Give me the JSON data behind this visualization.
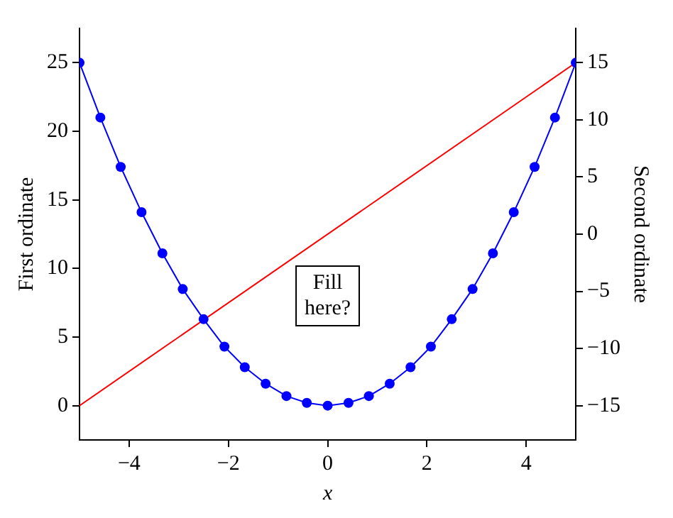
{
  "chart_data": {
    "type": "line",
    "xlabel": "x",
    "ylabel": "First ordinate",
    "y2label": "Second ordinate",
    "xlim": [
      -5,
      5
    ],
    "xticks": [
      -4,
      -2,
      0,
      2,
      4
    ],
    "ylim": [
      -2.5,
      27.5
    ],
    "yticks": [
      0,
      5,
      10,
      15,
      20,
      25
    ],
    "y2lim": [
      -18,
      18
    ],
    "y2ticks": [
      -15,
      -10,
      -5,
      0,
      5,
      10,
      15
    ],
    "grid": false,
    "legend": false,
    "annotations": [
      "Fill here?"
    ],
    "series": [
      {
        "color": "#0000ff",
        "marker": "circle",
        "x": [
          -5,
          -4.58,
          -4.17,
          -3.75,
          -3.33,
          -2.92,
          -2.5,
          -2.08,
          -1.67,
          -1.25,
          -0.83,
          -0.42,
          0,
          0.42,
          0.83,
          1.25,
          1.67,
          2.08,
          2.5,
          2.92,
          3.33,
          3.75,
          4.17,
          4.58,
          5
        ],
        "values": [
          25,
          21.0,
          17.4,
          14.1,
          11.1,
          8.5,
          6.3,
          4.3,
          2.8,
          1.6,
          0.7,
          0.2,
          0,
          0.2,
          0.7,
          1.6,
          2.8,
          4.3,
          6.3,
          8.5,
          11.1,
          14.1,
          17.4,
          21.0,
          25
        ]
      },
      {
        "color": "#ff0000",
        "marker": "none",
        "axis": "y2",
        "x": [
          -5,
          5
        ],
        "values": [
          -15,
          15
        ]
      }
    ]
  }
}
